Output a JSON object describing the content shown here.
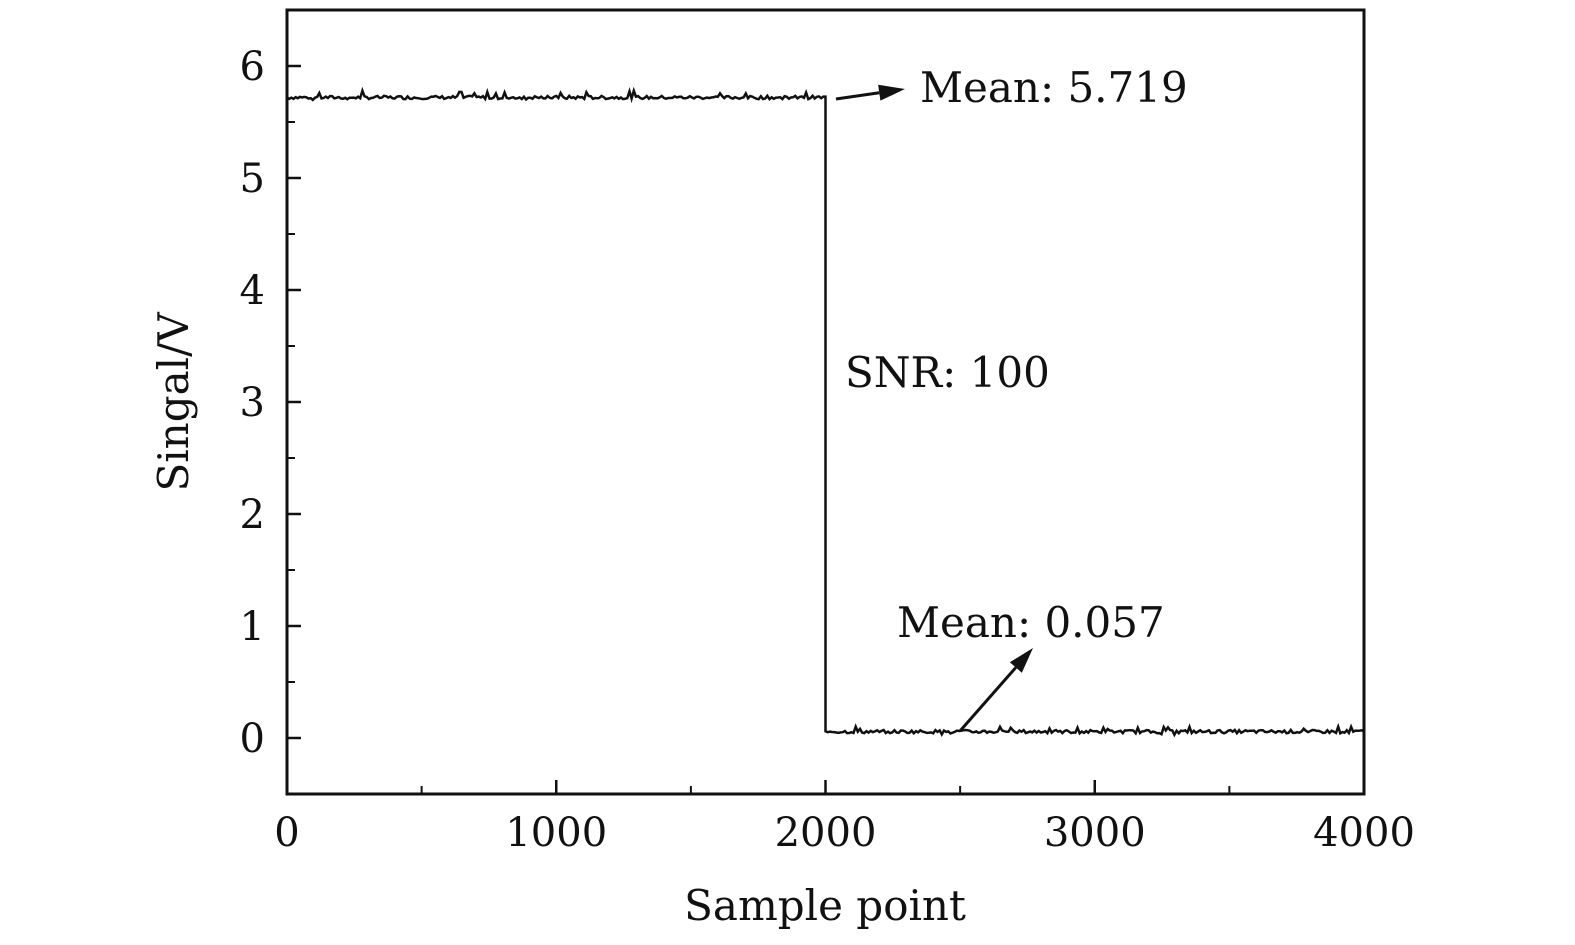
{
  "chart_data": {
    "type": "line",
    "title": "",
    "xlabel": "Sample point",
    "ylabel": "Singal/V",
    "xlim": [
      0,
      4000
    ],
    "ylim": [
      -0.5,
      6.5
    ],
    "x_ticks": [
      0,
      1000,
      2000,
      3000,
      4000
    ],
    "x_tick_labels": [
      "0",
      "1000",
      "2000",
      "3000",
      "4000"
    ],
    "y_ticks": [
      0,
      1,
      2,
      3,
      4,
      5,
      6
    ],
    "y_tick_labels": [
      "0",
      "1",
      "2",
      "3",
      "4",
      "5",
      "6"
    ],
    "grid": false,
    "legend": "none",
    "series": [
      {
        "color": "#111111",
        "segments": [
          {
            "x_start": 0,
            "x_end": 2000,
            "mean": 5.719
          },
          {
            "x_start": 2000,
            "x_end": 4000,
            "mean": 0.057
          }
        ]
      }
    ],
    "annotations": {
      "high_mean": "Mean: 5.719",
      "low_mean": "Mean: 0.057",
      "snr": "SNR: 100"
    }
  }
}
